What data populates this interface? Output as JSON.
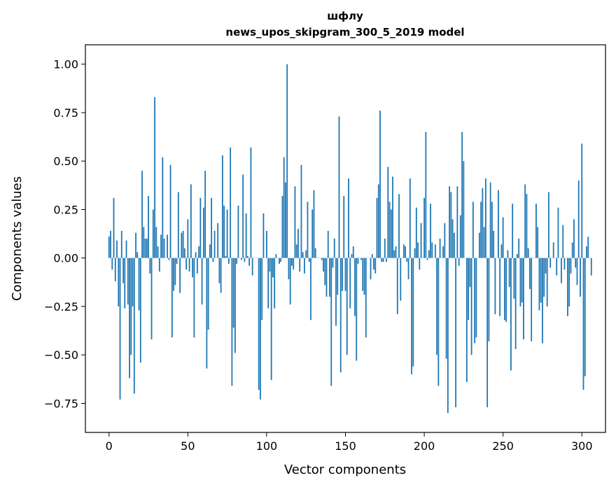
{
  "chart_data": {
    "type": "bar",
    "title": "шфлу",
    "subtitle": "news_upos_skipgram_300_5_2019 model",
    "xlabel": "Vector components",
    "ylabel": "Components values",
    "xlim": [
      -15,
      315
    ],
    "ylim": [
      -0.9,
      1.1
    ],
    "xticks": [
      0,
      50,
      100,
      150,
      200,
      250,
      300
    ],
    "yticks": [
      -0.75,
      -0.5,
      -0.25,
      0.0,
      0.25,
      0.5,
      0.75,
      1.0
    ],
    "ytick_labels": [
      "−0.75",
      "−0.50",
      "−0.25",
      "0.00",
      "0.25",
      "0.50",
      "0.75",
      "1.00"
    ],
    "grid": false,
    "bar_color": "#1f77b4",
    "values": [
      0.11,
      0.14,
      -0.06,
      0.31,
      -0.12,
      0.09,
      -0.25,
      -0.73,
      0.14,
      -0.13,
      -0.26,
      0.09,
      -0.24,
      -0.62,
      -0.5,
      -0.25,
      -0.7,
      0.13,
      0.03,
      -0.27,
      -0.54,
      0.45,
      0.16,
      0.1,
      0.1,
      0.32,
      -0.08,
      -0.42,
      0.25,
      0.83,
      0.16,
      0.06,
      -0.07,
      0.12,
      0.52,
      0.1,
      0.0,
      0.12,
      -0.01,
      0.48,
      -0.41,
      -0.17,
      -0.14,
      -0.03,
      0.34,
      -0.18,
      0.13,
      0.14,
      0.05,
      -0.06,
      0.2,
      -0.07,
      0.38,
      -0.1,
      -0.41,
      0.03,
      -0.08,
      0.06,
      0.31,
      -0.24,
      0.26,
      0.45,
      -0.57,
      -0.37,
      0.07,
      0.31,
      -0.02,
      0.14,
      0.0,
      0.18,
      -0.13,
      -0.18,
      0.53,
      0.27,
      0.01,
      0.25,
      -0.03,
      0.57,
      -0.66,
      -0.36,
      -0.49,
      -0.03,
      0.27,
      0.0,
      -0.01,
      0.43,
      -0.02,
      0.23,
      0.01,
      -0.04,
      0.57,
      -0.09,
      0.0,
      0.0,
      0.0,
      -0.68,
      -0.73,
      -0.32,
      0.23,
      0.0,
      0.14,
      -0.26,
      -0.07,
      -0.63,
      -0.1,
      -0.26,
      0.02,
      0.0,
      -0.03,
      -0.02,
      0.32,
      0.52,
      0.39,
      1.0,
      -0.11,
      -0.24,
      -0.04,
      -0.06,
      0.37,
      0.07,
      0.15,
      -0.07,
      0.48,
      0.03,
      -0.08,
      0.04,
      0.29,
      -0.02,
      -0.32,
      0.25,
      0.35,
      0.05,
      0.0,
      0.0,
      0.0,
      -0.01,
      -0.07,
      -0.14,
      -0.2,
      0.14,
      -0.2,
      -0.66,
      -0.05,
      0.1,
      -0.35,
      -0.19,
      0.73,
      -0.59,
      -0.17,
      0.32,
      -0.17,
      -0.5,
      0.41,
      -0.26,
      0.02,
      0.06,
      -0.3,
      -0.53,
      -0.03,
      0.0,
      -0.01,
      -0.17,
      -0.19,
      -0.41,
      0.0,
      0.0,
      -0.11,
      0.02,
      -0.06,
      -0.08,
      0.31,
      0.38,
      0.76,
      -0.02,
      -0.02,
      0.1,
      -0.02,
      0.47,
      0.29,
      0.25,
      0.42,
      0.04,
      0.06,
      -0.29,
      0.33,
      -0.22,
      0.0,
      0.07,
      0.06,
      -0.02,
      -0.11,
      0.41,
      -0.6,
      -0.56,
      0.05,
      0.26,
      0.08,
      -0.06,
      0.18,
      0.0,
      0.31,
      0.65,
      -0.01,
      0.04,
      0.28,
      0.08,
      0.0,
      0.07,
      -0.5,
      -0.66,
      0.1,
      0.0,
      0.06,
      0.18,
      -0.52,
      -0.8,
      0.37,
      0.34,
      0.2,
      0.13,
      -0.77,
      0.37,
      -0.04,
      0.22,
      0.65,
      0.5,
      0.0,
      -0.64,
      -0.32,
      -0.15,
      -0.5,
      0.29,
      -0.44,
      -0.41,
      0.0,
      0.13,
      0.29,
      0.36,
      0.16,
      0.41,
      -0.77,
      -0.43,
      0.39,
      0.29,
      0.14,
      -0.29,
      0.0,
      0.35,
      -0.3,
      0.07,
      0.21,
      -0.32,
      -0.33,
      0.04,
      -0.15,
      -0.58,
      0.28,
      -0.21,
      -0.47,
      0.02,
      0.1,
      -0.25,
      -0.23,
      -0.42,
      0.38,
      0.33,
      0.05,
      -0.16,
      -0.43,
      0.0,
      0.0,
      0.28,
      0.16,
      -0.27,
      -0.23,
      -0.44,
      -0.2,
      -0.08,
      -0.25,
      0.34,
      -0.05,
      0.0,
      0.08,
      0.0,
      -0.09,
      0.26,
      0.0,
      -0.13,
      0.17,
      -0.06,
      0.0,
      -0.3,
      -0.25,
      -0.08,
      0.08,
      0.2,
      -0.05,
      -0.14,
      0.4,
      -0.2,
      0.59,
      -0.68,
      -0.61,
      0.06,
      0.11,
      0.0,
      -0.09
    ]
  }
}
